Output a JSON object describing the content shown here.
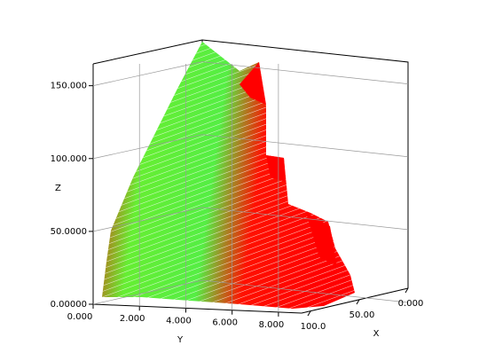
{
  "chart_data": {
    "type": "surface3d",
    "x_label": "X",
    "y_label": "Y",
    "z_label": "Z",
    "xlim": [
      0,
      100
    ],
    "ylim": [
      0,
      9
    ],
    "zlim": [
      0,
      165
    ],
    "xticks": [
      {
        "value": 0,
        "label": "0.000"
      },
      {
        "value": 50,
        "label": "50.00"
      },
      {
        "value": 100,
        "label": "100.0"
      }
    ],
    "yticks": [
      {
        "value": 0,
        "label": "0.000"
      },
      {
        "value": 2,
        "label": "2.000"
      },
      {
        "value": 4,
        "label": "4.000"
      },
      {
        "value": 6,
        "label": "6.000"
      },
      {
        "value": 8,
        "label": "8.000"
      }
    ],
    "zticks": [
      {
        "value": 0,
        "label": "0.00000"
      },
      {
        "value": 50,
        "label": "50.0000"
      },
      {
        "value": 100,
        "label": "100.000"
      },
      {
        "value": 150,
        "label": "150.000"
      }
    ],
    "grid": true
  }
}
